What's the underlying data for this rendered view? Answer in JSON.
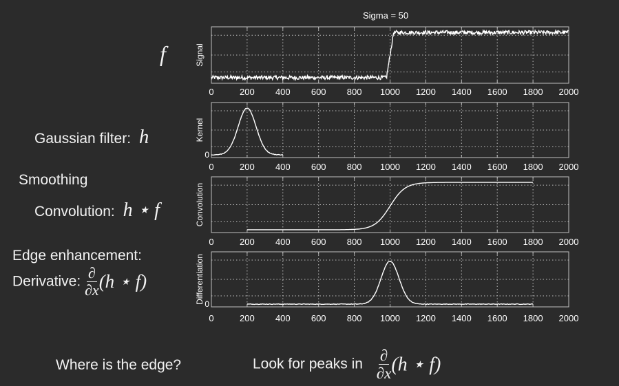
{
  "figure_title": "Sigma = 50",
  "left_labels": {
    "f_symbol": "f",
    "gaussian_label": "Gaussian filter:",
    "gaussian_symbol": "h",
    "smoothing": "Smoothing",
    "convolution_label": "Convolution:",
    "convolution_expr": "h ⋆ f",
    "edge_enhancement": "Edge enhancement:",
    "derivative_label": "Derivative:",
    "derivative_num": "∂",
    "derivative_den": "∂x",
    "derivative_expr": "(h ⋆ f)"
  },
  "bottom": {
    "question": "Where is the edge?",
    "answer_prefix": "Look for peaks in",
    "answer_num": "∂",
    "answer_den": "∂x",
    "answer_expr": "(h ⋆ f)"
  },
  "colors": {
    "background": "#2b2b2b",
    "line": "#ffffff",
    "grid": "#bfbfbf"
  },
  "chart_data": [
    {
      "type": "line",
      "ylabel": "Signal",
      "xlim": [
        0,
        2000
      ],
      "x_ticks": [
        "0",
        "200",
        "400",
        "600",
        "800",
        "1000",
        "1200",
        "1400",
        "1600",
        "1800",
        "2000"
      ],
      "y_ticks": [],
      "grid": true,
      "series": [
        {
          "shape": "noisy step",
          "x": [
            0,
            980,
            1020,
            2000
          ],
          "y": [
            0.1,
            0.1,
            0.9,
            0.9
          ]
        }
      ]
    },
    {
      "type": "line",
      "ylabel": "Kernel",
      "xlim": [
        0,
        2000
      ],
      "x_ticks": [
        "0",
        "200",
        "400",
        "600",
        "800",
        "1000",
        "1200",
        "1400",
        "1600",
        "1800",
        "2000"
      ],
      "y_ticks": [
        "0"
      ],
      "grid": true,
      "series": [
        {
          "shape": "gaussian",
          "x_start": 0,
          "x_end": 400,
          "center": 200,
          "sigma": 50,
          "peak": 0.85
        }
      ]
    },
    {
      "type": "line",
      "ylabel": "Convolution",
      "xlim": [
        0,
        2000
      ],
      "x_ticks": [
        "0",
        "200",
        "400",
        "600",
        "800",
        "1000",
        "1200",
        "1400",
        "1600",
        "1800",
        "2000"
      ],
      "y_ticks": [],
      "grid": true,
      "series": [
        {
          "shape": "smooth step",
          "x_start": 200,
          "x_end": 1800,
          "center": 1000,
          "sigma": 50,
          "low": 0.05,
          "high": 0.9
        }
      ]
    },
    {
      "type": "line",
      "ylabel": "Differentiation",
      "xlim": [
        0,
        2000
      ],
      "x_ticks": [
        "0",
        "200",
        "400",
        "600",
        "800",
        "1000",
        "1200",
        "1400",
        "1600",
        "1800",
        "2000"
      ],
      "y_ticks": [
        "0"
      ],
      "grid": true,
      "series": [
        {
          "shape": "gaussian",
          "x_start": 200,
          "x_end": 1800,
          "center": 1000,
          "sigma": 50,
          "peak": 0.78
        }
      ]
    }
  ]
}
